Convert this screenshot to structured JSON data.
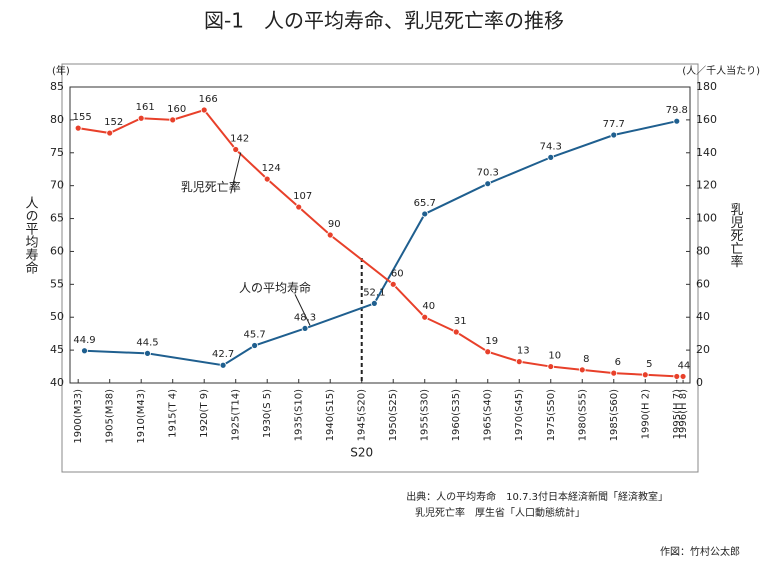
{
  "chart_data": {
    "type": "line",
    "title": "図-1　人の平均寿命、乳児死亡率の推移",
    "y_unit": "(年)",
    "y_axis_title": "人の平均寿命",
    "y2_unit": "(人／千人当たり)",
    "y2_axis_title": "乳児死亡率",
    "annotation": "S20",
    "xlim": [
      1898.7,
      1997.1
    ],
    "xticks": [
      {
        "value": 1900,
        "label": "1900(M33)"
      },
      {
        "value": 1905,
        "label": "1905(M38)"
      },
      {
        "value": 1910,
        "label": "1910(M43)"
      },
      {
        "value": 1915,
        "label": "1915(T 4)"
      },
      {
        "value": 1920,
        "label": "1920(T 9)"
      },
      {
        "value": 1925,
        "label": "1925(T14)"
      },
      {
        "value": 1930,
        "label": "1930(S 5)"
      },
      {
        "value": 1935,
        "label": "1935(S10)"
      },
      {
        "value": 1940,
        "label": "1940(S15)"
      },
      {
        "value": 1945,
        "label": "1945(S20)"
      },
      {
        "value": 1950,
        "label": "1950(S25)"
      },
      {
        "value": 1955,
        "label": "1955(S30)"
      },
      {
        "value": 1960,
        "label": "1960(S35)"
      },
      {
        "value": 1965,
        "label": "1965(S40)"
      },
      {
        "value": 1970,
        "label": "1970(S45)"
      },
      {
        "value": 1975,
        "label": "1975(S50)"
      },
      {
        "value": 1980,
        "label": "1980(S55)"
      },
      {
        "value": 1985,
        "label": "1985(S60)"
      },
      {
        "value": 1990,
        "label": "1990(H 2)"
      },
      {
        "value": 1995,
        "label": "1995(H 7)"
      },
      {
        "value": 1996,
        "label": "1996(H 8)"
      }
    ],
    "ylim": [
      40,
      85
    ],
    "yticks": [
      40,
      45,
      50,
      55,
      60,
      65,
      70,
      75,
      80,
      85
    ],
    "y2lim": [
      0,
      180
    ],
    "y2ticks": [
      0,
      20,
      40,
      60,
      80,
      100,
      120,
      140,
      160,
      180
    ],
    "series": [
      {
        "name": "人の平均寿命",
        "color": "#1f5f8f",
        "x": [
          1901,
          1911,
          1923,
          1928,
          1936,
          1947,
          1955,
          1965,
          1975,
          1985,
          1995
        ],
        "values": [
          44.9,
          44.5,
          42.7,
          45.7,
          48.3,
          52.1,
          65.7,
          70.3,
          74.3,
          77.7,
          79.8
        ]
      },
      {
        "name": "乳児死亡率",
        "color": "#e8402a",
        "axis": "y2",
        "x": [
          1900,
          1905,
          1910,
          1915,
          1920,
          1925,
          1930,
          1935,
          1940,
          1950,
          1955,
          1960,
          1965,
          1970,
          1975,
          1980,
          1985,
          1990,
          1995,
          1996
        ],
        "values": [
          155,
          152,
          161,
          160,
          166,
          142,
          124,
          107,
          90,
          60,
          40,
          31,
          19,
          13,
          10,
          8,
          6,
          5,
          4,
          4
        ]
      }
    ]
  },
  "notes": [
    "出典：人の平均寿命　10.7.3付日本経済新聞「経済教室」",
    "乳児死亡率　厚生省「人口動態統計」",
    "作図：竹村公太郎"
  ]
}
